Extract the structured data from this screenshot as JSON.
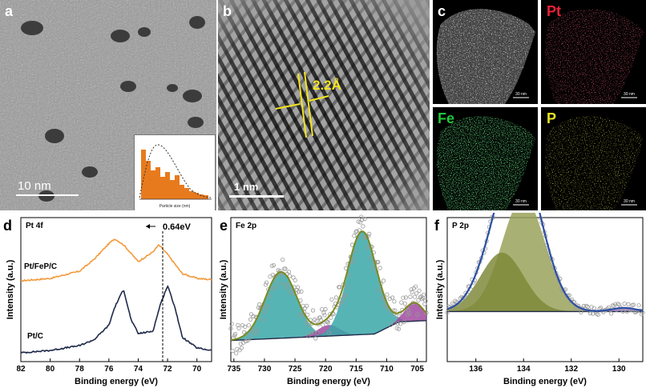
{
  "figure": {
    "panel_letters": {
      "a": "a",
      "b": "b",
      "c": "c",
      "d": "d",
      "e": "e",
      "f": "f"
    }
  },
  "panel_a": {
    "scale_label": "10 nm",
    "inset_xlabel": "Particle size (nm)"
  },
  "panel_b": {
    "scale_label": "1 nm",
    "spacing_label": "2.2Å",
    "annotation_color": "#f4e51e"
  },
  "panel_c": {
    "tiles": [
      {
        "label": "",
        "color": "#e8e8e8",
        "scale": "30 nm"
      },
      {
        "label": "Pt",
        "color": "#e8223a",
        "scale": "30 nm"
      },
      {
        "label": "Fe",
        "color": "#22c43a",
        "scale": "30 nm"
      },
      {
        "label": "P",
        "color": "#e5e21e",
        "scale": "30 nm"
      }
    ]
  },
  "chart_data": [
    {
      "type": "line",
      "panel": "d",
      "title": "Pt 4f",
      "xlabel": "Binding energy (eV)",
      "ylabel": "Intensity (a.u.)",
      "xlim": [
        82,
        69
      ],
      "xticks": [
        82,
        80,
        78,
        76,
        74,
        72,
        70
      ],
      "annotation": "0.64eV",
      "series": [
        {
          "name": "Pt/FeP/C",
          "color": "#f39a3d",
          "x": [
            82,
            80,
            78,
            77,
            76,
            75.6,
            75,
            74,
            73,
            72.6,
            72,
            71,
            70,
            69
          ],
          "y": [
            0.62,
            0.64,
            0.7,
            0.8,
            0.93,
            0.97,
            0.92,
            0.78,
            0.86,
            0.92,
            0.84,
            0.68,
            0.64,
            0.63
          ]
        },
        {
          "name": "Pt/C",
          "color": "#1f2a4a",
          "x": [
            82,
            80,
            78,
            77,
            76,
            75.6,
            75,
            74.5,
            74,
            73,
            72.5,
            72,
            71.5,
            71,
            70,
            69
          ],
          "y": [
            0.02,
            0.04,
            0.08,
            0.13,
            0.25,
            0.4,
            0.55,
            0.3,
            0.18,
            0.2,
            0.42,
            0.58,
            0.4,
            0.15,
            0.06,
            0.04
          ]
        }
      ]
    },
    {
      "type": "line",
      "panel": "e",
      "title": "Fe 2p",
      "xlabel": "Binding energy (eV)",
      "ylabel": "Intensity (a.u.)",
      "xlim": [
        735.5,
        703.5
      ],
      "xticks": [
        735,
        730,
        725,
        720,
        715,
        710,
        705
      ],
      "fit_color": "#7a8a1e",
      "peaks": [
        {
          "center": 727.3,
          "height": 0.36,
          "width": 2.6,
          "color": "#3aa7a7"
        },
        {
          "center": 719.5,
          "height": 0.06,
          "width": 1.8,
          "color": "#a04aa0"
        },
        {
          "center": 714.0,
          "height": 0.56,
          "width": 2.4,
          "color": "#3aa7a7"
        },
        {
          "center": 705.5,
          "height": 0.1,
          "width": 1.5,
          "color": "#a04aa0"
        }
      ]
    },
    {
      "type": "line",
      "panel": "f",
      "title": "P 2p",
      "xlabel": "Binding energy (eV)",
      "ylabel": "Intensity (a.u.)",
      "xlim": [
        137.2,
        129.0
      ],
      "xticks": [
        136,
        134,
        132,
        130
      ],
      "fit_color": "#2b4fa3",
      "peaks": [
        {
          "center": 134.0,
          "height": 0.62,
          "width": 0.9,
          "color": "#9aa25a"
        },
        {
          "center": 134.9,
          "height": 0.32,
          "width": 0.9,
          "color": "#7f8a3a"
        },
        {
          "center": 129.8,
          "height": 0.02,
          "width": 0.5,
          "color": "#a07ad0"
        }
      ]
    }
  ]
}
